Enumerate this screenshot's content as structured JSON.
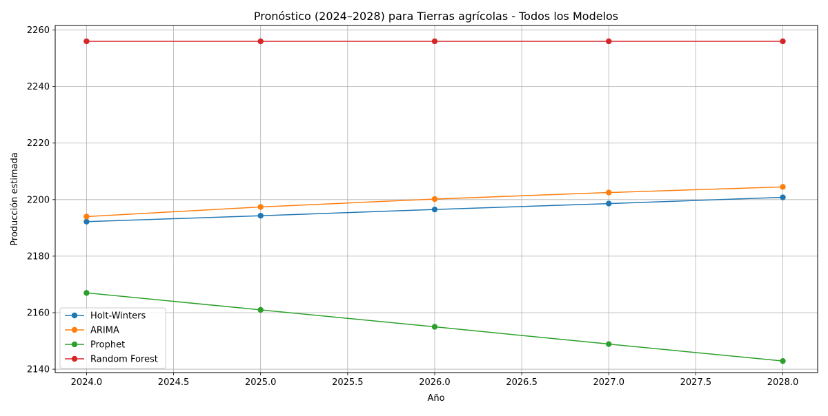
{
  "chart_data": {
    "type": "line",
    "title": "Pronóstico (2024–2028) para Tierras agrícolas - Todos los Modelos",
    "xlabel": "Año",
    "ylabel": "Producción estimada",
    "xlim": [
      2023.82,
      2028.2
    ],
    "ylim": [
      2138.8,
      2261.6
    ],
    "xticks": [
      2024.0,
      2024.5,
      2025.0,
      2025.5,
      2026.0,
      2026.5,
      2027.0,
      2027.5,
      2028.0
    ],
    "xtick_labels": [
      "2024.0",
      "2024.5",
      "2025.0",
      "2025.5",
      "2026.0",
      "2026.5",
      "2027.0",
      "2027.5",
      "2028.0"
    ],
    "yticks": [
      2140,
      2160,
      2180,
      2200,
      2220,
      2240,
      2260
    ],
    "ytick_labels": [
      "2140",
      "2160",
      "2180",
      "2200",
      "2220",
      "2240",
      "2260"
    ],
    "grid": true,
    "legend_position": "lower-left",
    "x": [
      2024,
      2025,
      2026,
      2027,
      2028
    ],
    "series": [
      {
        "name": "Holt-Winters",
        "color": "#1f77b4",
        "values": [
          2192.2,
          2194.3,
          2196.5,
          2198.6,
          2200.8
        ]
      },
      {
        "name": "ARIMA",
        "color": "#ff7f0e",
        "values": [
          2194.0,
          2197.4,
          2200.2,
          2202.5,
          2204.5
        ]
      },
      {
        "name": "Prophet",
        "color": "#2ca02c",
        "values": [
          2167.0,
          2161.0,
          2155.0,
          2148.9,
          2142.9
        ]
      },
      {
        "name": "Random Forest",
        "color": "#d62728",
        "values": [
          2256.0,
          2256.0,
          2256.0,
          2256.0,
          2256.0
        ]
      }
    ]
  }
}
